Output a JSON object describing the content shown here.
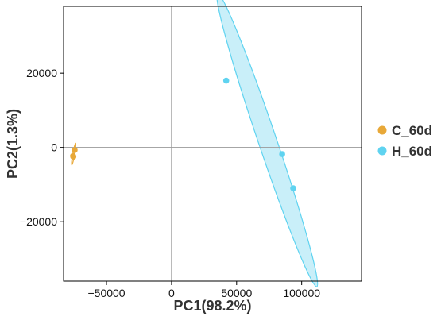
{
  "chart_data": {
    "type": "scatter",
    "title": "",
    "xlabel": "PC1(98.2%)",
    "ylabel": "PC2(1.3%)",
    "xlim": [
      -83000,
      146000
    ],
    "ylim": [
      -36000,
      38000
    ],
    "x_ticks": [
      -50000,
      0,
      50000,
      100000
    ],
    "x_tick_labels": [
      "−50000",
      "0",
      "50000",
      "100000"
    ],
    "y_ticks": [
      -20000,
      0,
      20000
    ],
    "y_tick_labels": [
      "−20000",
      "0",
      "20000"
    ],
    "reference_lines": {
      "x": 0,
      "y": 0
    },
    "grid": false,
    "legend_position": "right",
    "series": [
      {
        "name": "C_60d",
        "color": "#E8A838",
        "points": [
          {
            "x": -74500,
            "y": -700
          },
          {
            "x": -75500,
            "y": -2500
          },
          {
            "x": -75700,
            "y": -2300
          }
        ],
        "ellipse": {
          "cx": -75200,
          "cy": -1800,
          "semi_major": 5100,
          "semi_minor": 180
        }
      },
      {
        "name": "H_60d",
        "color": "#5FD3F0",
        "fill": "#C9EFF9",
        "points": [
          {
            "x": 42000,
            "y": 18000
          },
          {
            "x": 85000,
            "y": -1800
          },
          {
            "x": 93500,
            "y": -11000
          }
        ],
        "ellipse": {
          "cx": 73500,
          "cy": 2000,
          "semi_major": 62600,
          "semi_minor": 3600
        }
      }
    ]
  }
}
